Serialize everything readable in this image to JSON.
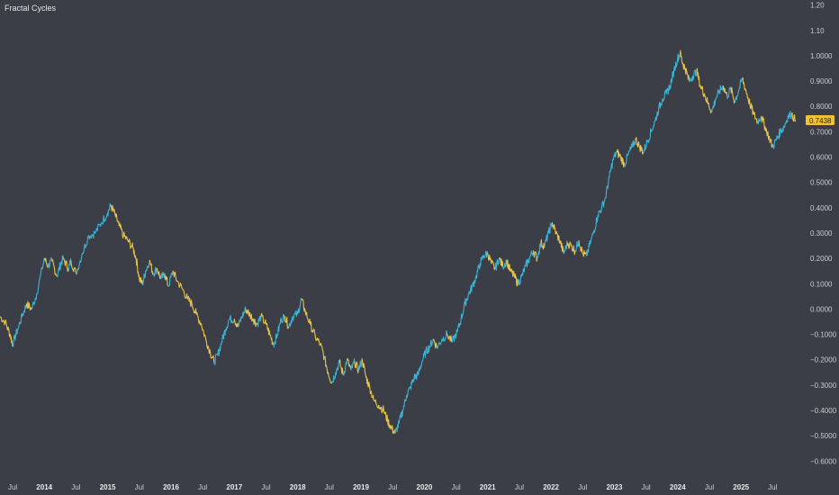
{
  "chart_data": {
    "type": "line",
    "title": "Fractal Cycles",
    "xlabel": "",
    "ylabel": "",
    "x_range": [
      2013.3,
      2025.95
    ],
    "ylim": [
      -0.67,
      1.22
    ],
    "y_ticks": [
      "1.20",
      "1.10",
      "1.0000",
      "0.9000",
      "0.8000",
      "0.7000",
      "0.6000",
      "0.5000",
      "0.4000",
      "0.3000",
      "0.2000",
      "0.1000",
      "0.0000",
      "−0.1000",
      "−0.2000",
      "−0.3000",
      "−0.4000",
      "−0.5000",
      "−0.6000"
    ],
    "y_tick_values": [
      1.2,
      1.1,
      1.0,
      0.9,
      0.8,
      0.7,
      0.6,
      0.5,
      0.4,
      0.3,
      0.2,
      0.1,
      0.0,
      -0.1,
      -0.2,
      -0.3,
      -0.4,
      -0.5,
      -0.6
    ],
    "x_ticks": [
      {
        "label": "Jul",
        "x": 2013.5,
        "year": false
      },
      {
        "label": "2014",
        "x": 2014.0,
        "year": true
      },
      {
        "label": "Jul",
        "x": 2014.5,
        "year": false
      },
      {
        "label": "2015",
        "x": 2015.0,
        "year": true
      },
      {
        "label": "Jul",
        "x": 2015.5,
        "year": false
      },
      {
        "label": "2016",
        "x": 2016.0,
        "year": true
      },
      {
        "label": "Jul",
        "x": 2016.5,
        "year": false
      },
      {
        "label": "2017",
        "x": 2017.0,
        "year": true
      },
      {
        "label": "Jul",
        "x": 2017.5,
        "year": false
      },
      {
        "label": "2018",
        "x": 2018.0,
        "year": true
      },
      {
        "label": "Jul",
        "x": 2018.5,
        "year": false
      },
      {
        "label": "2019",
        "x": 2019.0,
        "year": true
      },
      {
        "label": "Jul",
        "x": 2019.5,
        "year": false
      },
      {
        "label": "2020",
        "x": 2020.0,
        "year": true
      },
      {
        "label": "Jul",
        "x": 2020.5,
        "year": false
      },
      {
        "label": "2021",
        "x": 2021.0,
        "year": true
      },
      {
        "label": "Jul",
        "x": 2021.5,
        "year": false
      },
      {
        "label": "2022",
        "x": 2022.0,
        "year": true
      },
      {
        "label": "Jul",
        "x": 2022.5,
        "year": false
      },
      {
        "label": "2023",
        "x": 2023.0,
        "year": true
      },
      {
        "label": "Jul",
        "x": 2023.5,
        "year": false
      },
      {
        "label": "2024",
        "x": 2024.0,
        "year": true
      },
      {
        "label": "Jul",
        "x": 2024.5,
        "year": false
      },
      {
        "label": "2025",
        "x": 2025.0,
        "year": true
      },
      {
        "label": "Jul",
        "x": 2025.5,
        "year": false
      }
    ],
    "grid": false,
    "last_value_label": "0.7438",
    "colors": {
      "background": "#3b3e46",
      "rising": "#3bb5d6",
      "falling": "#e8c34a",
      "axis_text": "#c9ccd2",
      "price_tag": "#f2c230"
    },
    "series": [
      {
        "points": [
          [
            2013.3,
            -0.03
          ],
          [
            2013.38,
            -0.05
          ],
          [
            2013.46,
            -0.1
          ],
          [
            2013.5,
            -0.14
          ],
          [
            2013.58,
            -0.08
          ],
          [
            2013.66,
            -0.02
          ],
          [
            2013.72,
            0.02
          ],
          [
            2013.8,
            0.0
          ],
          [
            2013.88,
            0.06
          ],
          [
            2014.0,
            0.2
          ],
          [
            2014.06,
            0.17
          ],
          [
            2014.12,
            0.19
          ],
          [
            2014.2,
            0.13
          ],
          [
            2014.26,
            0.18
          ],
          [
            2014.3,
            0.2
          ],
          [
            2014.38,
            0.16
          ],
          [
            2014.42,
            0.19
          ],
          [
            2014.5,
            0.14
          ],
          [
            2014.6,
            0.22
          ],
          [
            2014.7,
            0.29
          ],
          [
            2014.8,
            0.3
          ],
          [
            2014.9,
            0.34
          ],
          [
            2015.0,
            0.38
          ],
          [
            2015.05,
            0.41
          ],
          [
            2015.12,
            0.37
          ],
          [
            2015.18,
            0.33
          ],
          [
            2015.25,
            0.29
          ],
          [
            2015.32,
            0.27
          ],
          [
            2015.4,
            0.24
          ],
          [
            2015.45,
            0.2
          ],
          [
            2015.5,
            0.12
          ],
          [
            2015.55,
            0.1
          ],
          [
            2015.6,
            0.15
          ],
          [
            2015.66,
            0.19
          ],
          [
            2015.72,
            0.14
          ],
          [
            2015.78,
            0.16
          ],
          [
            2015.84,
            0.12
          ],
          [
            2015.9,
            0.14
          ],
          [
            2015.96,
            0.09
          ],
          [
            2016.03,
            0.15
          ],
          [
            2016.1,
            0.11
          ],
          [
            2016.18,
            0.08
          ],
          [
            2016.26,
            0.04
          ],
          [
            2016.33,
            0.02
          ],
          [
            2016.4,
            -0.02
          ],
          [
            2016.48,
            -0.06
          ],
          [
            2016.55,
            -0.12
          ],
          [
            2016.62,
            -0.17
          ],
          [
            2016.68,
            -0.21
          ],
          [
            2016.74,
            -0.18
          ],
          [
            2016.8,
            -0.13
          ],
          [
            2016.86,
            -0.08
          ],
          [
            2016.92,
            -0.04
          ],
          [
            2017.0,
            -0.04
          ],
          [
            2017.06,
            -0.07
          ],
          [
            2017.12,
            -0.03
          ],
          [
            2017.18,
            0.0
          ],
          [
            2017.24,
            -0.02
          ],
          [
            2017.3,
            -0.04
          ],
          [
            2017.36,
            -0.06
          ],
          [
            2017.42,
            -0.03
          ],
          [
            2017.5,
            -0.06
          ],
          [
            2017.56,
            -0.1
          ],
          [
            2017.62,
            -0.14
          ],
          [
            2017.68,
            -0.1
          ],
          [
            2017.74,
            -0.04
          ],
          [
            2017.8,
            -0.03
          ],
          [
            2017.86,
            -0.07
          ],
          [
            2017.92,
            -0.03
          ],
          [
            2018.0,
            -0.02
          ],
          [
            2018.06,
            0.04
          ],
          [
            2018.12,
            -0.01
          ],
          [
            2018.2,
            -0.06
          ],
          [
            2018.28,
            -0.11
          ],
          [
            2018.36,
            -0.14
          ],
          [
            2018.42,
            -0.19
          ],
          [
            2018.48,
            -0.25
          ],
          [
            2018.54,
            -0.29
          ],
          [
            2018.6,
            -0.25
          ],
          [
            2018.66,
            -0.21
          ],
          [
            2018.72,
            -0.26
          ],
          [
            2018.78,
            -0.2
          ],
          [
            2018.84,
            -0.24
          ],
          [
            2018.9,
            -0.21
          ],
          [
            2018.96,
            -0.24
          ],
          [
            2019.02,
            -0.2
          ],
          [
            2019.08,
            -0.27
          ],
          [
            2019.14,
            -0.31
          ],
          [
            2019.2,
            -0.36
          ],
          [
            2019.28,
            -0.38
          ],
          [
            2019.36,
            -0.4
          ],
          [
            2019.42,
            -0.44
          ],
          [
            2019.48,
            -0.47
          ],
          [
            2019.54,
            -0.49
          ],
          [
            2019.6,
            -0.45
          ],
          [
            2019.66,
            -0.4
          ],
          [
            2019.72,
            -0.34
          ],
          [
            2019.78,
            -0.31
          ],
          [
            2019.84,
            -0.27
          ],
          [
            2019.9,
            -0.26
          ],
          [
            2019.96,
            -0.21
          ],
          [
            2020.02,
            -0.17
          ],
          [
            2020.08,
            -0.15
          ],
          [
            2020.14,
            -0.12
          ],
          [
            2020.2,
            -0.15
          ],
          [
            2020.28,
            -0.12
          ],
          [
            2020.36,
            -0.1
          ],
          [
            2020.44,
            -0.13
          ],
          [
            2020.52,
            -0.09
          ],
          [
            2020.58,
            -0.04
          ],
          [
            2020.64,
            0.02
          ],
          [
            2020.7,
            0.06
          ],
          [
            2020.76,
            0.09
          ],
          [
            2020.82,
            0.13
          ],
          [
            2020.88,
            0.18
          ],
          [
            2020.94,
            0.21
          ],
          [
            2021.0,
            0.22
          ],
          [
            2021.06,
            0.18
          ],
          [
            2021.12,
            0.16
          ],
          [
            2021.18,
            0.2
          ],
          [
            2021.24,
            0.17
          ],
          [
            2021.3,
            0.19
          ],
          [
            2021.36,
            0.15
          ],
          [
            2021.42,
            0.13
          ],
          [
            2021.48,
            0.1
          ],
          [
            2021.54,
            0.13
          ],
          [
            2021.6,
            0.17
          ],
          [
            2021.66,
            0.2
          ],
          [
            2021.72,
            0.23
          ],
          [
            2021.78,
            0.2
          ],
          [
            2021.84,
            0.26
          ],
          [
            2021.9,
            0.25
          ],
          [
            2021.96,
            0.3
          ],
          [
            2022.02,
            0.34
          ],
          [
            2022.08,
            0.3
          ],
          [
            2022.14,
            0.27
          ],
          [
            2022.2,
            0.22
          ],
          [
            2022.26,
            0.26
          ],
          [
            2022.32,
            0.25
          ],
          [
            2022.38,
            0.23
          ],
          [
            2022.44,
            0.27
          ],
          [
            2022.5,
            0.22
          ],
          [
            2022.56,
            0.21
          ],
          [
            2022.62,
            0.26
          ],
          [
            2022.68,
            0.31
          ],
          [
            2022.74,
            0.37
          ],
          [
            2022.8,
            0.4
          ],
          [
            2022.86,
            0.44
          ],
          [
            2022.92,
            0.52
          ],
          [
            2022.98,
            0.59
          ],
          [
            2023.04,
            0.62
          ],
          [
            2023.1,
            0.6
          ],
          [
            2023.16,
            0.57
          ],
          [
            2023.22,
            0.61
          ],
          [
            2023.28,
            0.64
          ],
          [
            2023.34,
            0.67
          ],
          [
            2023.4,
            0.64
          ],
          [
            2023.46,
            0.62
          ],
          [
            2023.52,
            0.66
          ],
          [
            2023.58,
            0.7
          ],
          [
            2023.64,
            0.74
          ],
          [
            2023.7,
            0.79
          ],
          [
            2023.76,
            0.83
          ],
          [
            2023.82,
            0.85
          ],
          [
            2023.88,
            0.88
          ],
          [
            2023.94,
            0.94
          ],
          [
            2024.0,
            0.99
          ],
          [
            2024.04,
            1.01
          ],
          [
            2024.08,
            0.97
          ],
          [
            2024.12,
            0.95
          ],
          [
            2024.18,
            0.9
          ],
          [
            2024.24,
            0.92
          ],
          [
            2024.3,
            0.94
          ],
          [
            2024.36,
            0.88
          ],
          [
            2024.42,
            0.85
          ],
          [
            2024.48,
            0.81
          ],
          [
            2024.54,
            0.78
          ],
          [
            2024.6,
            0.83
          ],
          [
            2024.66,
            0.86
          ],
          [
            2024.72,
            0.88
          ],
          [
            2024.78,
            0.84
          ],
          [
            2024.84,
            0.87
          ],
          [
            2024.9,
            0.82
          ],
          [
            2024.96,
            0.86
          ],
          [
            2025.02,
            0.91
          ],
          [
            2025.08,
            0.86
          ],
          [
            2025.14,
            0.81
          ],
          [
            2025.2,
            0.77
          ],
          [
            2025.26,
            0.74
          ],
          [
            2025.32,
            0.76
          ],
          [
            2025.38,
            0.72
          ],
          [
            2025.44,
            0.68
          ],
          [
            2025.5,
            0.64
          ],
          [
            2025.56,
            0.67
          ],
          [
            2025.62,
            0.7
          ],
          [
            2025.68,
            0.72
          ],
          [
            2025.74,
            0.76
          ],
          [
            2025.8,
            0.77
          ],
          [
            2025.86,
            0.7438
          ]
        ]
      }
    ]
  }
}
